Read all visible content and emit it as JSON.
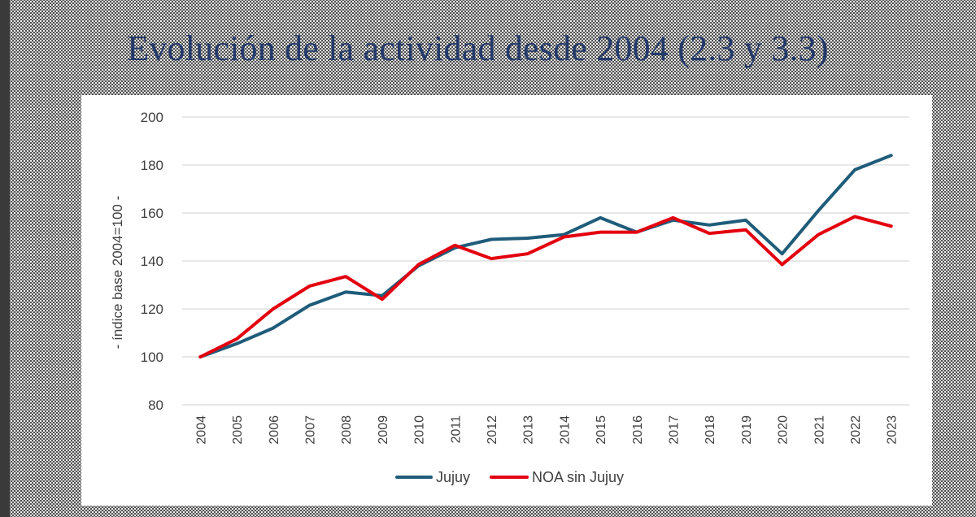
{
  "slide": {
    "title": "Evolución de la actividad desde 2004 (2.3 y 3.3)"
  },
  "chart_data": {
    "type": "line",
    "title": "",
    "xlabel": "",
    "ylabel": "- índice base 2004=100 -",
    "categories": [
      "2004",
      "2005",
      "2006",
      "2007",
      "2008",
      "2009",
      "2010",
      "2011",
      "2012",
      "2013",
      "2014",
      "2015",
      "2016",
      "2017",
      "2018",
      "2019",
      "2020",
      "2021",
      "2022",
      "2023"
    ],
    "ylim": [
      80,
      200
    ],
    "yticks": [
      80,
      100,
      120,
      140,
      160,
      180,
      200
    ],
    "grid": true,
    "legend_position": "bottom",
    "series": [
      {
        "name": "Jujuy",
        "color": "#1f5c7a",
        "values": [
          100,
          105.5,
          112,
          121.5,
          127,
          125.5,
          138,
          145.5,
          149,
          149.5,
          151,
          158,
          152,
          157,
          155,
          157,
          143,
          161,
          178,
          184
        ]
      },
      {
        "name": "NOA sin Jujuy",
        "color": "#e3000f",
        "values": [
          100,
          107.5,
          120,
          129.5,
          133.5,
          124,
          138.5,
          146.5,
          141,
          143,
          150,
          152,
          152,
          158,
          151.5,
          153,
          138.5,
          151,
          158.5,
          154.5
        ]
      }
    ]
  }
}
